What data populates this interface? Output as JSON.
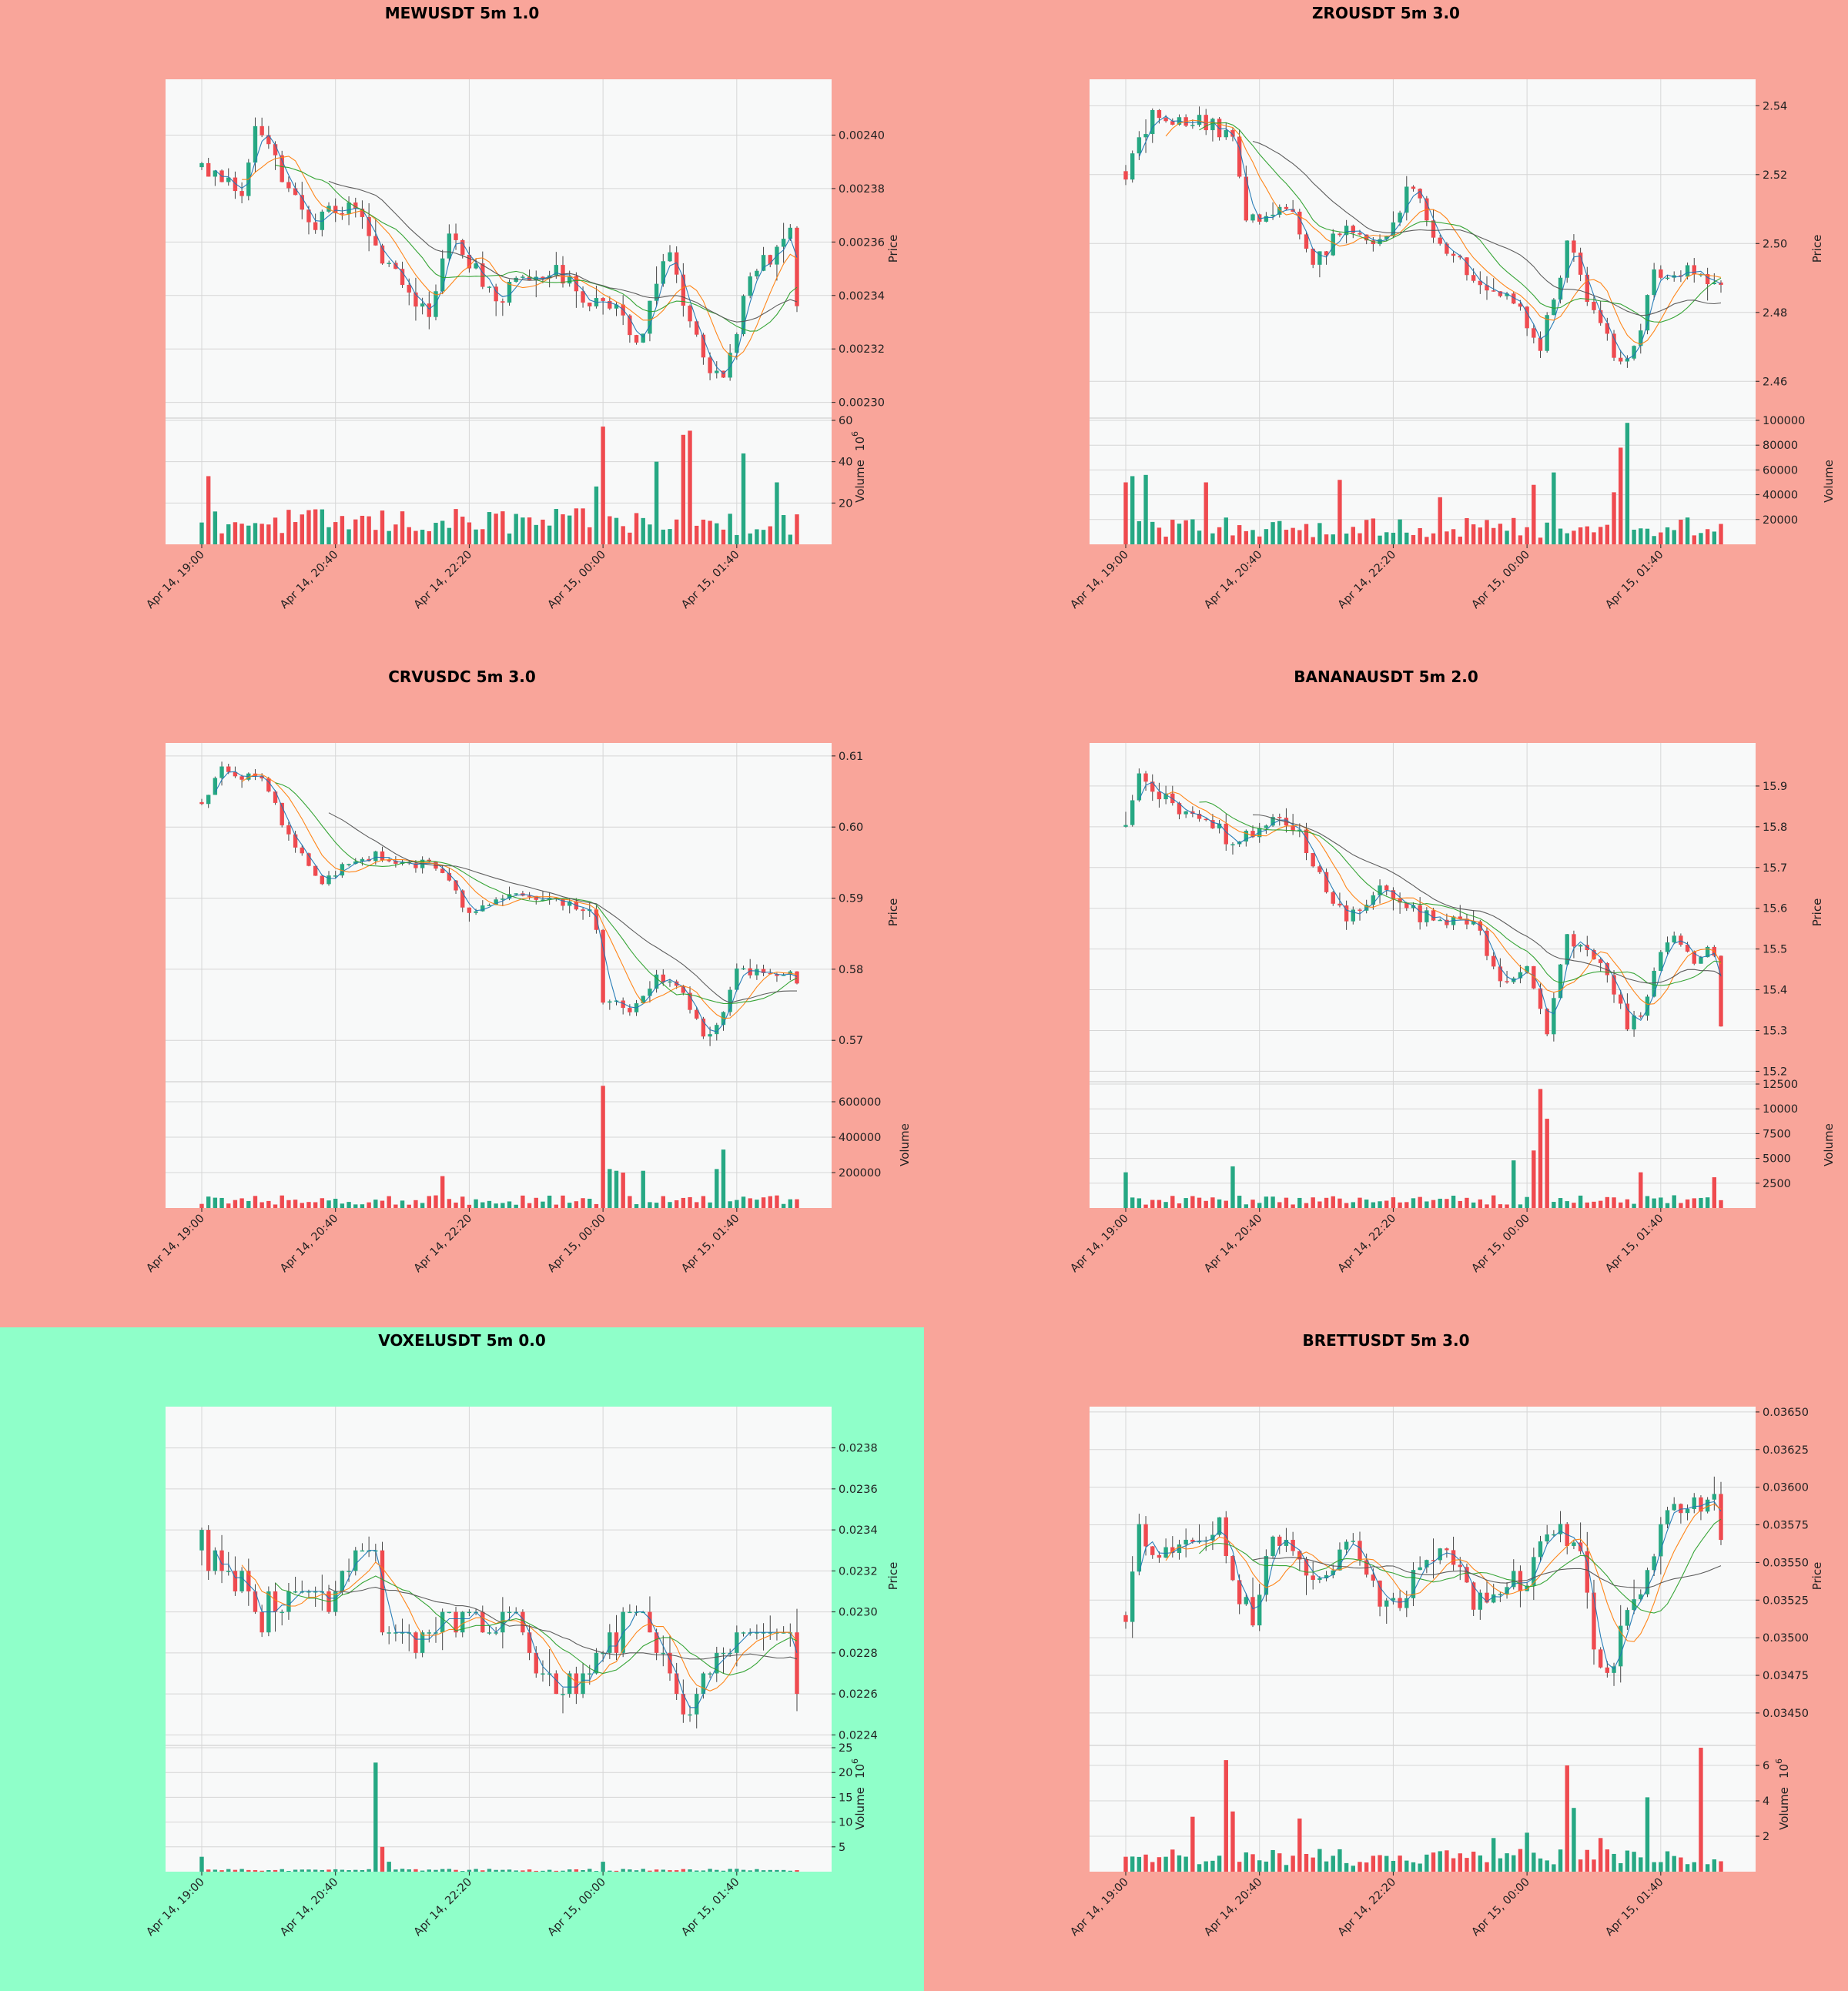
{
  "colors": {
    "page_bg": "#f9a59a",
    "highlight_bg": "#8fffc9",
    "plot_bg": "#f8f9f9",
    "up": "#26a883",
    "down": "#ef4a4f",
    "ma_fast": "#1f77b4",
    "ma_mid": "#ff7f0e",
    "ma_slow": "#2ca02c",
    "ma_long": "#555555"
  },
  "chart_data": [
    {
      "type": "candlestick",
      "title": "MEWUSDT 5m 1.0",
      "highlighted": false,
      "ylabel": "Price",
      "vlabel": "Volume",
      "vlabel_exp": "6",
      "ylim": [
        0.002295,
        0.00242
      ],
      "yticks": [
        0.0023,
        0.00232,
        0.00234,
        0.00236,
        0.00238,
        0.0024
      ],
      "ytick_labels": [
        "0.00230",
        "0.00232",
        "0.00234",
        "0.00236",
        "0.00238",
        "0.00240"
      ],
      "vlim": [
        0,
        60
      ],
      "vticks": [
        20,
        40,
        60
      ],
      "vtick_labels": [
        "20",
        "40",
        "60"
      ],
      "x_ticks": [
        "Apr 14, 19:00",
        "Apr 14, 20:40",
        "Apr 14, 22:20",
        "Apr 15, 00:00",
        "Apr 15, 01:40"
      ],
      "x_tick_index": [
        0,
        20,
        40,
        60,
        80
      ],
      "n": 90,
      "start": 0.002388,
      "end": 0.002336,
      "path": [
        [
          0,
          0.002388
        ],
        [
          6,
          0.002379
        ],
        [
          8,
          0.002405
        ],
        [
          16,
          0.002366
        ],
        [
          22,
          0.002375
        ],
        [
          28,
          0.00235
        ],
        [
          34,
          0.002333
        ],
        [
          37,
          0.002363
        ],
        [
          44,
          0.002339
        ],
        [
          52,
          0.00235
        ],
        [
          57,
          0.00234
        ],
        [
          63,
          0.002335
        ],
        [
          65,
          0.002322
        ],
        [
          70,
          0.002357
        ],
        [
          72,
          0.002339
        ],
        [
          75,
          0.002317
        ],
        [
          78,
          0.002308
        ],
        [
          82,
          0.002346
        ],
        [
          88,
          0.002363
        ],
        [
          90,
          0.002336
        ]
      ],
      "noise": 3.5e-06,
      "vol_base": 12,
      "vol_spikes": [
        [
          1,
          33
        ],
        [
          59,
          28
        ],
        [
          60,
          57
        ],
        [
          68,
          40
        ],
        [
          72,
          53
        ],
        [
          73,
          55
        ],
        [
          86,
          30
        ],
        [
          81,
          44
        ]
      ]
    },
    {
      "type": "candlestick",
      "title": "ZROUSDT 5m 3.0",
      "highlighted": false,
      "ylabel": "Price",
      "vlabel": "Volume",
      "vlabel_exp": "",
      "ylim": [
        2.45,
        2.547
      ],
      "yticks": [
        2.46,
        2.48,
        2.5,
        2.52,
        2.54
      ],
      "ytick_labels": [
        "2.46",
        "2.48",
        "2.50",
        "2.52",
        "2.54"
      ],
      "vlim": [
        0,
        100000
      ],
      "vticks": [
        20000,
        40000,
        60000,
        80000,
        100000
      ],
      "vtick_labels": [
        "20000",
        "40000",
        "60000",
        "80000",
        "100000"
      ],
      "x_ticks": [
        "Apr 14, 19:00",
        "Apr 14, 20:40",
        "Apr 14, 22:20",
        "Apr 15, 00:00",
        "Apr 15, 01:40"
      ],
      "x_tick_index": [
        0,
        20,
        40,
        60,
        80
      ],
      "n": 90,
      "start": 2.521,
      "end": 2.488,
      "path": [
        [
          0,
          2.521
        ],
        [
          4,
          2.538
        ],
        [
          12,
          2.535
        ],
        [
          16,
          2.53
        ],
        [
          18,
          2.505
        ],
        [
          24,
          2.512
        ],
        [
          28,
          2.496
        ],
        [
          34,
          2.505
        ],
        [
          38,
          2.5
        ],
        [
          43,
          2.518
        ],
        [
          46,
          2.502
        ],
        [
          52,
          2.49
        ],
        [
          58,
          2.483
        ],
        [
          62,
          2.47
        ],
        [
          66,
          2.5
        ],
        [
          70,
          2.48
        ],
        [
          73,
          2.468
        ],
        [
          74,
          2.465
        ],
        [
          76,
          2.47
        ],
        [
          79,
          2.49
        ],
        [
          84,
          2.492
        ],
        [
          88,
          2.49
        ],
        [
          90,
          2.488
        ]
      ],
      "noise": 0.0025,
      "vol_base": 15000,
      "vol_spikes": [
        [
          0,
          50000
        ],
        [
          1,
          55000
        ],
        [
          3,
          56000
        ],
        [
          12,
          50000
        ],
        [
          32,
          52000
        ],
        [
          47,
          38000
        ],
        [
          61,
          48000
        ],
        [
          64,
          58000
        ],
        [
          73,
          42000
        ],
        [
          74,
          78000
        ],
        [
          75,
          98000
        ]
      ]
    },
    {
      "type": "candlestick",
      "title": "CRVUSDC 5m 3.0",
      "highlighted": false,
      "ylabel": "Price",
      "vlabel": "Volume",
      "vlabel_exp": "",
      "ylim": [
        0.5645,
        0.6115
      ],
      "yticks": [
        0.57,
        0.58,
        0.59,
        0.6,
        0.61
      ],
      "ytick_labels": [
        "0.57",
        "0.58",
        "0.59",
        "0.60",
        "0.61"
      ],
      "vlim": [
        0,
        700000
      ],
      "vticks": [
        200000,
        400000,
        600000
      ],
      "vtick_labels": [
        "200000",
        "400000",
        "600000"
      ],
      "x_ticks": [
        "Apr 14, 19:00",
        "Apr 14, 20:40",
        "Apr 14, 22:20",
        "Apr 15, 00:00",
        "Apr 15, 01:40"
      ],
      "x_tick_index": [
        0,
        20,
        40,
        60,
        80
      ],
      "n": 90,
      "start": 0.6035,
      "end": 0.578,
      "path": [
        [
          0,
          0.6035
        ],
        [
          3,
          0.608
        ],
        [
          9,
          0.6065
        ],
        [
          14,
          0.597
        ],
        [
          18,
          0.5915
        ],
        [
          22,
          0.5955
        ],
        [
          26,
          0.596
        ],
        [
          30,
          0.595
        ],
        [
          35,
          0.5945
        ],
        [
          40,
          0.588
        ],
        [
          46,
          0.59
        ],
        [
          52,
          0.59
        ],
        [
          58,
          0.588
        ],
        [
          59,
          0.586
        ],
        [
          60,
          0.576
        ],
        [
          64,
          0.574
        ],
        [
          68,
          0.579
        ],
        [
          72,
          0.5765
        ],
        [
          75,
          0.571
        ],
        [
          77,
          0.572
        ],
        [
          80,
          0.58
        ],
        [
          85,
          0.579
        ],
        [
          88,
          0.5795
        ],
        [
          90,
          0.578
        ]
      ],
      "noise": 0.0007,
      "vol_base": 50000,
      "vol_spikes": [
        [
          60,
          690000
        ],
        [
          61,
          220000
        ],
        [
          62,
          210000
        ],
        [
          63,
          200000
        ],
        [
          66,
          210000
        ],
        [
          78,
          330000
        ],
        [
          77,
          220000
        ],
        [
          36,
          180000
        ]
      ]
    },
    {
      "type": "candlestick",
      "title": "BANANAUSDT 5m 2.0",
      "highlighted": false,
      "ylabel": "Price",
      "vlabel": "Volume",
      "vlabel_exp": "",
      "ylim": [
        15.18,
        16.0
      ],
      "yticks": [
        15.2,
        15.3,
        15.4,
        15.5,
        15.6,
        15.7,
        15.8,
        15.9
      ],
      "ytick_labels": [
        "15.2",
        "15.3",
        "15.4",
        "15.5",
        "15.6",
        "15.7",
        "15.8",
        "15.9"
      ],
      "vlim": [
        0,
        12500
      ],
      "vticks": [
        2500,
        5000,
        7500,
        10000,
        12500
      ],
      "vtick_labels": [
        "2500",
        "5000",
        "7500",
        "10000",
        "12500"
      ],
      "x_ticks": [
        "Apr 14, 19:00",
        "Apr 14, 20:40",
        "Apr 14, 22:20",
        "Apr 15, 00:00",
        "Apr 15, 01:40"
      ],
      "x_tick_index": [
        0,
        20,
        40,
        60,
        80
      ],
      "n": 90,
      "start": 15.8,
      "end": 15.31,
      "path": [
        [
          0,
          15.8
        ],
        [
          2,
          15.92
        ],
        [
          7,
          15.85
        ],
        [
          12,
          15.83
        ],
        [
          16,
          15.75
        ],
        [
          21,
          15.82
        ],
        [
          26,
          15.79
        ],
        [
          28,
          15.7
        ],
        [
          33,
          15.58
        ],
        [
          38,
          15.64
        ],
        [
          44,
          15.58
        ],
        [
          52,
          15.56
        ],
        [
          56,
          15.43
        ],
        [
          60,
          15.45
        ],
        [
          63,
          15.3
        ],
        [
          66,
          15.52
        ],
        [
          71,
          15.48
        ],
        [
          75,
          15.32
        ],
        [
          77,
          15.35
        ],
        [
          81,
          15.53
        ],
        [
          85,
          15.48
        ],
        [
          88,
          15.5
        ],
        [
          90,
          15.31
        ]
      ],
      "noise": 0.018,
      "vol_base": 900,
      "vol_spikes": [
        [
          0,
          3600
        ],
        [
          16,
          4200
        ],
        [
          58,
          4800
        ],
        [
          61,
          5800
        ],
        [
          62,
          12000
        ],
        [
          63,
          9000
        ],
        [
          77,
          3600
        ],
        [
          88,
          3100
        ]
      ]
    },
    {
      "type": "candlestick",
      "title": "VOXELUSDT 5m 0.0",
      "highlighted": true,
      "ylabel": "Price",
      "vlabel": "Volume",
      "vlabel_exp": "6",
      "ylim": [
        0.02236,
        0.02399
      ],
      "yticks": [
        0.0224,
        0.0226,
        0.0228,
        0.023,
        0.0232,
        0.0234,
        0.0236,
        0.0238
      ],
      "ytick_labels": [
        "0.0224",
        "0.0226",
        "0.0228",
        "0.0230",
        "0.0232",
        "0.0234",
        "0.0236",
        "0.0238"
      ],
      "vlim": [
        0,
        25
      ],
      "vticks": [
        5,
        10,
        15,
        20,
        25
      ],
      "vtick_labels": [
        "5",
        "10",
        "15",
        "20",
        "25"
      ],
      "x_ticks": [
        "Apr 14, 19:00",
        "Apr 14, 20:40",
        "Apr 14, 22:20",
        "Apr 15, 00:00",
        "Apr 15, 01:40"
      ],
      "x_tick_index": [
        0,
        20,
        40,
        60,
        80
      ],
      "n": 90,
      "start": 0.0233,
      "end": 0.0226,
      "path": [
        [
          0,
          0.0233
        ],
        [
          4,
          0.0232
        ],
        [
          9,
          0.023
        ],
        [
          14,
          0.0231
        ],
        [
          19,
          0.0231
        ],
        [
          24,
          0.0233
        ],
        [
          26,
          0.0233
        ],
        [
          27,
          0.0229
        ],
        [
          32,
          0.0229
        ],
        [
          36,
          0.023
        ],
        [
          42,
          0.0229
        ],
        [
          46,
          0.023
        ],
        [
          50,
          0.0227
        ],
        [
          56,
          0.0226
        ],
        [
          60,
          0.0228
        ],
        [
          65,
          0.023
        ],
        [
          70,
          0.0227
        ],
        [
          73,
          0.0225
        ],
        [
          76,
          0.0228
        ],
        [
          82,
          0.0229
        ],
        [
          88,
          0.0229
        ],
        [
          90,
          0.0226
        ]
      ],
      "noise": 6e-05,
      "quantize": 0.0001,
      "vol_base": 0.4,
      "vol_spikes": [
        [
          0,
          3
        ],
        [
          26,
          22
        ],
        [
          27,
          5
        ],
        [
          28,
          2
        ],
        [
          60,
          2
        ]
      ]
    },
    {
      "type": "candlestick",
      "title": "BRETTUSDT 5m 3.0",
      "highlighted": false,
      "ylabel": "Price",
      "vlabel": "Volume",
      "vlabel_exp": "6",
      "ylim": [
        0.0343,
        0.03652
      ],
      "yticks": [
        0.0345,
        0.03475,
        0.035,
        0.03525,
        0.0355,
        0.03575,
        0.036,
        0.03625,
        0.0365
      ],
      "ytick_labels": [
        "0.03450",
        "0.03475",
        "0.03500",
        "0.03525",
        "0.03550",
        "0.03575",
        "0.03600",
        "0.03625",
        "0.03650"
      ],
      "vlim": [
        0,
        7
      ],
      "vticks": [
        2,
        4,
        6
      ],
      "vtick_labels": [
        "2",
        "4",
        "6"
      ],
      "x_ticks": [
        "Apr 14, 19:00",
        "Apr 14, 20:40",
        "Apr 14, 22:20",
        "Apr 15, 00:00",
        "Apr 15, 01:40"
      ],
      "x_tick_index": [
        0,
        20,
        40,
        60,
        80
      ],
      "n": 90,
      "start": 0.03515,
      "end": 0.03565,
      "path": [
        [
          0,
          0.03515
        ],
        [
          2,
          0.0357
        ],
        [
          6,
          0.03555
        ],
        [
          10,
          0.03565
        ],
        [
          14,
          0.03575
        ],
        [
          16,
          0.03535
        ],
        [
          19,
          0.03515
        ],
        [
          22,
          0.0357
        ],
        [
          26,
          0.03545
        ],
        [
          30,
          0.03545
        ],
        [
          34,
          0.0357
        ],
        [
          37,
          0.0353
        ],
        [
          40,
          0.0352
        ],
        [
          44,
          0.03545
        ],
        [
          48,
          0.03565
        ],
        [
          52,
          0.03525
        ],
        [
          56,
          0.03535
        ],
        [
          60,
          0.0354
        ],
        [
          64,
          0.03575
        ],
        [
          68,
          0.03555
        ],
        [
          70,
          0.0349
        ],
        [
          72,
          0.0347
        ],
        [
          74,
          0.03505
        ],
        [
          78,
          0.03545
        ],
        [
          82,
          0.0359
        ],
        [
          86,
          0.0359
        ],
        [
          88,
          0.0359
        ],
        [
          90,
          0.03565
        ]
      ],
      "noise": 8e-05,
      "vol_base": 0.9,
      "vol_spikes": [
        [
          15,
          6.3
        ],
        [
          16,
          3.4
        ],
        [
          10,
          3.1
        ],
        [
          26,
          3.0
        ],
        [
          55,
          1.9
        ],
        [
          60,
          2.2
        ],
        [
          66,
          6.0
        ],
        [
          67,
          3.6
        ],
        [
          78,
          4.2
        ],
        [
          86,
          7.0
        ],
        [
          71,
          1.9
        ]
      ]
    }
  ]
}
